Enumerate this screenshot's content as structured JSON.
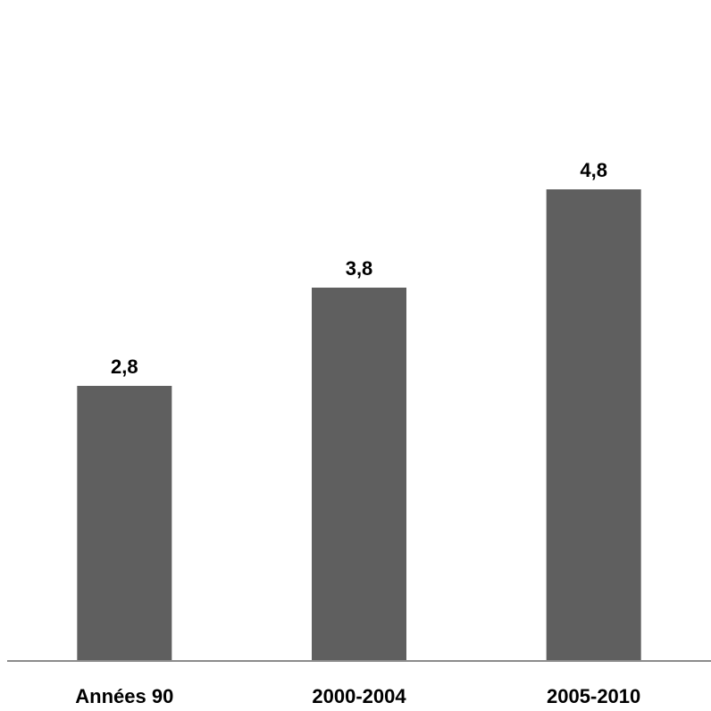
{
  "chart_data": {
    "type": "bar",
    "title": "",
    "xlabel": "",
    "ylabel": "",
    "categories": [
      "Années 90",
      "2000-2004",
      "2005-2010"
    ],
    "values": [
      2.8,
      3.8,
      4.8
    ],
    "value_labels": [
      "2,8",
      "3,8",
      "4,8"
    ],
    "ylim": [
      0,
      5.6
    ],
    "grid": false,
    "legend": "none",
    "bar_color": "#5f5f5f",
    "axis_color": "#8c8c8c"
  }
}
